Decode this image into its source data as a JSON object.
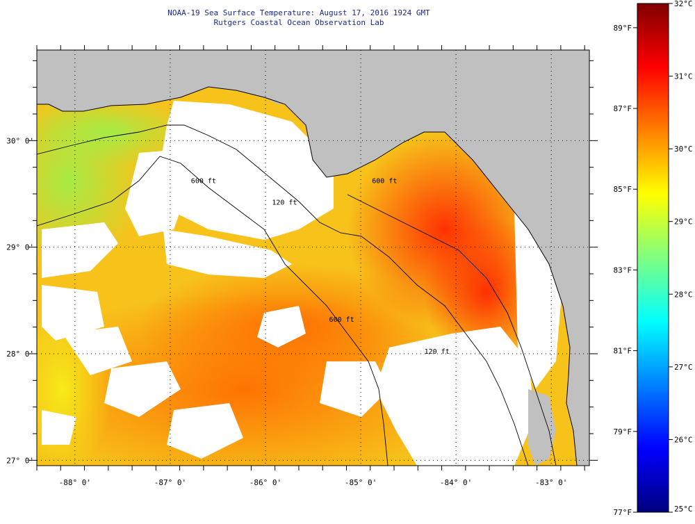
{
  "title": {
    "line1": "NOAA-19 Sea Surface Temperature:  August 17, 2016 1924 GMT",
    "line2": "Rutgers Coastal Ocean Observation Lab"
  },
  "map": {
    "lon_range": [
      -88.4,
      -82.6
    ],
    "lat_range": [
      26.95,
      30.85
    ],
    "lon_ticks": [
      {
        "value": -88,
        "label": "-88° 0'"
      },
      {
        "value": -87,
        "label": "-87° 0'"
      },
      {
        "value": -86,
        "label": "-86° 0'"
      },
      {
        "value": -85,
        "label": "-85° 0'"
      },
      {
        "value": -84,
        "label": "-84° 0'"
      },
      {
        "value": -83,
        "label": "-83° 0'"
      }
    ],
    "lat_ticks": [
      {
        "value": 30,
        "label": "30° 0'"
      },
      {
        "value": 29,
        "label": "29° 0'"
      },
      {
        "value": 28,
        "label": "28° 0'"
      },
      {
        "value": 27,
        "label": "27° 0'"
      }
    ],
    "contour_labels": [
      {
        "text": "600 ft",
        "lon": -86.65,
        "lat": 29.6
      },
      {
        "text": "120 ft",
        "lon": -85.8,
        "lat": 29.4
      },
      {
        "text": "600 ft",
        "lon": -85.2,
        "lat": 28.3
      },
      {
        "text": "600 ft",
        "lon": -84.75,
        "lat": 29.6
      },
      {
        "text": "120 ft",
        "lon": -84.2,
        "lat": 28.0
      }
    ],
    "colors": {
      "land": "#c0c0c0",
      "coast": "#000000",
      "grid": "#000000",
      "cloud": "#ffffff"
    }
  },
  "colorbar": {
    "celsius": [
      {
        "value": 32,
        "label": "32°C"
      },
      {
        "value": 31,
        "label": "31°C"
      },
      {
        "value": 30,
        "label": "30°C"
      },
      {
        "value": 29,
        "label": "29°C"
      },
      {
        "value": 28,
        "label": "28°C"
      },
      {
        "value": 27,
        "label": "27°C"
      },
      {
        "value": 26,
        "label": "26°C"
      },
      {
        "value": 25,
        "label": "25°C"
      }
    ],
    "fahrenheit": [
      {
        "value": 89,
        "label": "89°F"
      },
      {
        "value": 87,
        "label": "87°F"
      },
      {
        "value": 85,
        "label": "85°F"
      },
      {
        "value": 83,
        "label": "83°F"
      },
      {
        "value": 81,
        "label": "81°F"
      },
      {
        "value": 79,
        "label": "79°F"
      },
      {
        "value": 77,
        "label": "77°F"
      }
    ],
    "stops": [
      "#7f0000",
      "#ff0000",
      "#ff8000",
      "#ffff00",
      "#80ff80",
      "#00ffff",
      "#0080ff",
      "#0000ff",
      "#00007f"
    ]
  }
}
